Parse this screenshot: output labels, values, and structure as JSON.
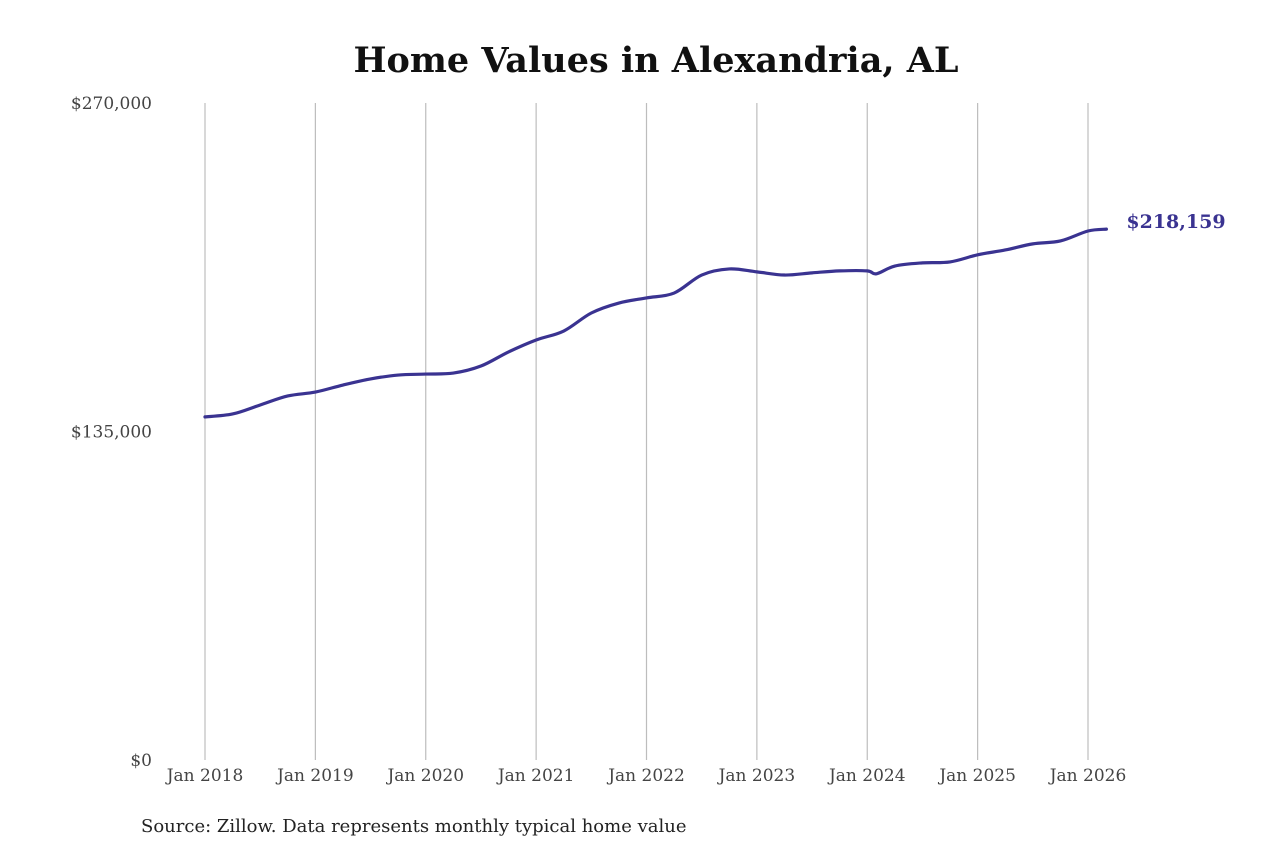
{
  "chart_data": {
    "type": "line",
    "title": "Home Values in Alexandria, AL",
    "source": "Source: Zillow. Data represents monthly typical home value",
    "xlabel": "",
    "ylabel": "",
    "ylim": [
      0,
      270000
    ],
    "y_ticks": [
      0,
      135000,
      270000
    ],
    "y_tick_labels": [
      "$0",
      "$135,000",
      "$270,000"
    ],
    "x_ticks": [
      "2018-01",
      "2019-01",
      "2020-01",
      "2021-01",
      "2022-01",
      "2023-01",
      "2024-01",
      "2025-01",
      "2026-01"
    ],
    "x_tick_labels": [
      "Jan 2018",
      "Jan 2019",
      "Jan 2020",
      "Jan 2021",
      "Jan 2022",
      "Jan 2023",
      "Jan 2024",
      "Jan 2025",
      "Jan 2026"
    ],
    "grid": "vertical",
    "line_color": "#3a3391",
    "end_label": "$218,159",
    "series": [
      {
        "x": [
          "2018-01",
          "2018-04",
          "2018-07",
          "2018-10",
          "2019-01",
          "2019-04",
          "2019-07",
          "2019-10",
          "2020-01",
          "2020-04",
          "2020-07",
          "2020-10",
          "2021-01",
          "2021-04",
          "2021-07",
          "2021-10",
          "2022-01",
          "2022-04",
          "2022-07",
          "2022-10",
          "2023-01",
          "2023-04",
          "2023-07",
          "2023-10",
          "2024-01",
          "2024-02",
          "2024-04",
          "2024-07",
          "2024-10",
          "2025-01",
          "2025-04",
          "2025-07",
          "2025-10",
          "2026-01",
          "2026-03"
        ],
        "values": [
          141000,
          142200,
          145900,
          149600,
          151200,
          154100,
          156600,
          158200,
          158600,
          159000,
          161900,
          167700,
          172600,
          176300,
          183700,
          187800,
          189900,
          191900,
          199300,
          201800,
          200600,
          199300,
          200200,
          201000,
          201000,
          199800,
          203000,
          204300,
          204700,
          207600,
          209600,
          212100,
          213300,
          217400,
          218159
        ]
      }
    ]
  }
}
